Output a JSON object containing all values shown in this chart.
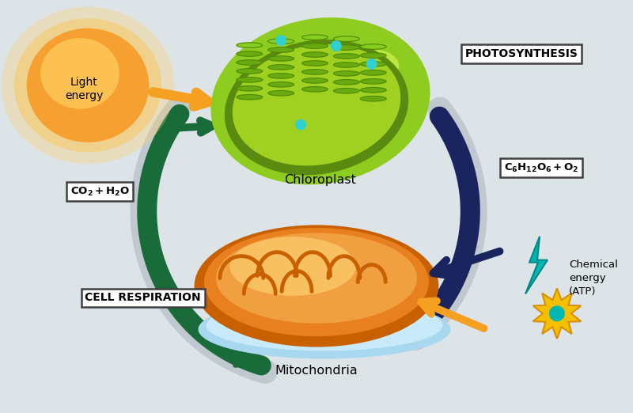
{
  "background_color": "#dde4e8",
  "fig_width": 8.0,
  "fig_height": 5.22,
  "dpi": 100,
  "labels": {
    "photosynthesis": "PHOTOSYNTHESIS",
    "cell_respiration": "CELL RESPIRATION",
    "co2_h2o": "CO₂ + H₂O",
    "c6h12o6_o2": "C₆H₁₂O₆ + O₂",
    "chloroplast": "Chloroplast",
    "mitochondria": "Mitochondria",
    "light_energy": "Light\nenergy",
    "chemical_energy": "Chemical\nenergy\n(ATP)"
  },
  "colors": {
    "dark_green": "#1a6b3a",
    "dark_navy": "#1a2560",
    "orange": "#f5a020",
    "teal": "#00b8b0",
    "white": "#ffffff",
    "chloroplast_outer": "#8fcc20",
    "chloroplast_mid": "#c8e840",
    "chloroplast_inner_bg": "#a0d020",
    "chloroplast_dark": "#5a8a10",
    "thylakoid_fill": "#6aaa10",
    "thylakoid_top": "#4a8a05",
    "mito_orange_dark": "#c86000",
    "mito_orange_mid": "#e88020",
    "mito_orange_light": "#f0a040",
    "mito_inner_light": "#f8c060",
    "mito_blue": "#a8d8f0",
    "mito_blue_dark": "#70b0d8",
    "sun_center": "#e87800",
    "sun_mid": "#f5a030",
    "sun_outer": "#ffd060",
    "arc_gray": "#c0c8d0"
  }
}
